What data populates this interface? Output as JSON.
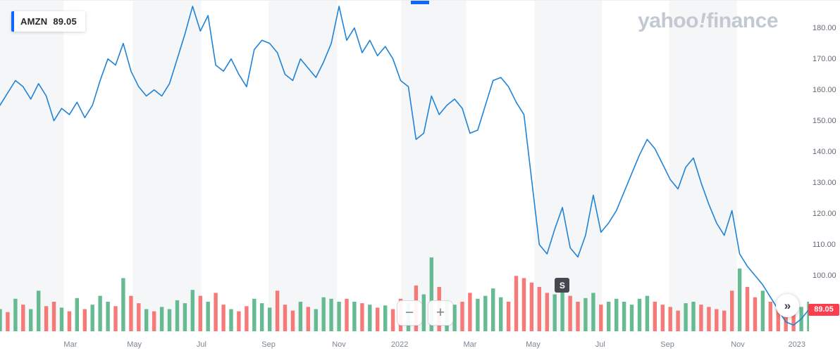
{
  "legend": {
    "symbol": "AMZN",
    "price": "89.05"
  },
  "watermark": {
    "part1": "yahoo",
    "bang": "!",
    "part2": "finance"
  },
  "controls": {
    "zoom_out": "−",
    "zoom_in": "+",
    "pan_right": "»"
  },
  "event_marker": {
    "label": "S",
    "x": 0.695
  },
  "axis_badge": {
    "value": "89.05"
  },
  "colors": {
    "line": "#1f83d6",
    "volume_up": "#4caf7f",
    "volume_down": "#f4635f",
    "stripe": "#f5f6f8",
    "accent": "#0f69ff",
    "badge": "#fb3e4e",
    "marker": "#45484e",
    "watermark": "#c3c9d2"
  },
  "chart_data": {
    "type": "line",
    "title": "AMZN weekly price with volume, Jan 2021 – Jan 2023",
    "symbol": "AMZN",
    "current_price": 89.05,
    "ylim": [
      82,
      188.8
    ],
    "y_ticks": [
      "180.00",
      "170.00",
      "160.00",
      "150.00",
      "140.00",
      "130.00",
      "120.00",
      "110.00",
      "100.00"
    ],
    "y_tick_values": [
      180,
      170,
      160,
      150,
      140,
      130,
      120,
      110,
      100
    ],
    "x_labels": [
      {
        "label": "Mar",
        "x": 0.087
      },
      {
        "label": "May",
        "x": 0.166
      },
      {
        "label": "Jul",
        "x": 0.249
      },
      {
        "label": "Sep",
        "x": 0.332
      },
      {
        "label": "Nov",
        "x": 0.419
      },
      {
        "label": "2022",
        "x": 0.494
      },
      {
        "label": "Mar",
        "x": 0.581
      },
      {
        "label": "May",
        "x": 0.659
      },
      {
        "label": "Jul",
        "x": 0.742
      },
      {
        "label": "Sep",
        "x": 0.825
      },
      {
        "label": "Nov",
        "x": 0.912
      },
      {
        "label": "2023",
        "x": 0.985
      }
    ],
    "bands": [
      [
        0,
        0.0786
      ],
      [
        0.1642,
        0.2489
      ],
      [
        0.3319,
        0.4166
      ],
      [
        0.4961,
        0.5764
      ],
      [
        0.6611,
        0.7441
      ],
      [
        0.8271,
        0.9109
      ]
    ],
    "price_series": [
      155,
      159,
      163,
      161,
      157,
      162,
      158,
      150,
      154,
      152,
      156,
      151,
      155,
      163,
      170,
      168,
      175,
      166,
      161,
      158,
      160,
      158,
      162,
      170,
      178,
      187,
      179,
      184,
      168,
      166,
      170,
      165,
      161,
      173,
      176,
      175,
      172,
      165,
      163,
      170,
      167,
      164,
      169,
      175,
      187,
      176,
      180,
      172,
      176,
      171,
      174,
      170,
      163,
      161,
      144,
      146,
      158,
      152,
      155,
      157,
      154,
      146,
      147,
      155,
      163,
      164,
      161,
      156,
      152,
      131,
      110,
      107,
      115,
      122,
      109,
      106,
      113,
      126,
      114,
      117,
      121,
      127,
      133,
      139,
      144,
      141,
      136,
      131,
      128,
      135,
      138,
      130,
      123,
      117,
      113,
      121,
      107,
      103,
      100,
      97,
      93,
      89,
      85,
      84,
      86,
      89.05
    ],
    "volume_series": {
      "values": [
        0.3,
        0.26,
        0.44,
        0.36,
        0.3,
        0.55,
        0.34,
        0.4,
        0.32,
        0.27,
        0.45,
        0.3,
        0.36,
        0.48,
        0.4,
        0.34,
        0.72,
        0.48,
        0.38,
        0.3,
        0.27,
        0.33,
        0.3,
        0.42,
        0.38,
        0.56,
        0.48,
        0.4,
        0.52,
        0.36,
        0.3,
        0.27,
        0.34,
        0.44,
        0.38,
        0.32,
        0.55,
        0.36,
        0.28,
        0.4,
        0.33,
        0.3,
        0.46,
        0.44,
        0.4,
        0.44,
        0.4,
        0.38,
        0.36,
        0.32,
        0.35,
        0.3,
        0.44,
        0.38,
        0.62,
        0.5,
        1.0,
        0.6,
        0.42,
        0.36,
        0.4,
        0.52,
        0.44,
        0.48,
        0.58,
        0.46,
        0.4,
        0.75,
        0.72,
        0.66,
        0.6,
        0.52,
        0.5,
        0.55,
        0.48,
        0.4,
        0.45,
        0.52,
        0.36,
        0.4,
        0.44,
        0.4,
        0.36,
        0.44,
        0.48,
        0.4,
        0.36,
        0.33,
        0.28,
        0.38,
        0.4,
        0.36,
        0.33,
        0.3,
        0.28,
        0.55,
        0.85,
        0.6,
        0.46,
        0.55,
        0.4,
        0.34,
        0.3,
        0.28,
        0.33,
        0.4
      ],
      "colors": "grgrggrrgrgrgggrgrrgrgggggrgrrgrrgggrrrgrggggrgrgrgrrgrggrggrrggggrrrrrrggrrggrggggggrrrrggrrrrrgrrgrrrrgg"
    }
  }
}
